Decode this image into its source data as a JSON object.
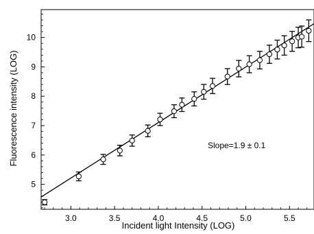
{
  "chart_data": {
    "type": "scatter",
    "title": "",
    "xlabel": "Incident light Intensity (LOG)",
    "ylabel": "Fluorescence intensity (LOG)",
    "xlim": [
      2.66,
      5.78
    ],
    "ylim": [
      4.15,
      10.95
    ],
    "x_ticks": [
      3.0,
      3.5,
      4.0,
      4.5,
      5.0,
      5.5
    ],
    "x_tick_labels": [
      "3.0",
      "3.5",
      "4.0",
      "4.5",
      "5.0",
      "5.5"
    ],
    "y_ticks": [
      5,
      6,
      7,
      8,
      9,
      10
    ],
    "y_tick_labels": [
      "5",
      "6",
      "7",
      "8",
      "9",
      "10"
    ],
    "grid": false,
    "annotation": "Slope=1.9 ± 0.1",
    "fit_line": {
      "x": [
        2.66,
        5.78
      ],
      "y": [
        4.57,
        10.47
      ]
    },
    "series": [
      {
        "marker": "open-circle",
        "x": [
          2.7,
          3.09,
          3.37,
          3.56,
          3.7,
          3.88,
          4.02,
          4.18,
          4.27,
          4.41,
          4.52,
          4.62,
          4.79,
          4.92,
          5.04,
          5.16,
          5.27,
          5.36,
          5.44,
          5.53,
          5.6,
          5.64,
          5.72
        ],
        "y": [
          4.39,
          5.27,
          5.85,
          6.15,
          6.49,
          6.82,
          7.21,
          7.49,
          7.71,
          7.91,
          8.15,
          8.35,
          8.67,
          8.94,
          9.09,
          9.23,
          9.43,
          9.59,
          9.73,
          9.87,
          10.0,
          10.03,
          10.23
        ],
        "err": [
          0.09,
          0.15,
          0.17,
          0.18,
          0.19,
          0.2,
          0.21,
          0.22,
          0.23,
          0.24,
          0.25,
          0.26,
          0.27,
          0.28,
          0.29,
          0.3,
          0.31,
          0.32,
          0.33,
          0.34,
          0.35,
          0.36,
          0.37
        ]
      }
    ]
  }
}
